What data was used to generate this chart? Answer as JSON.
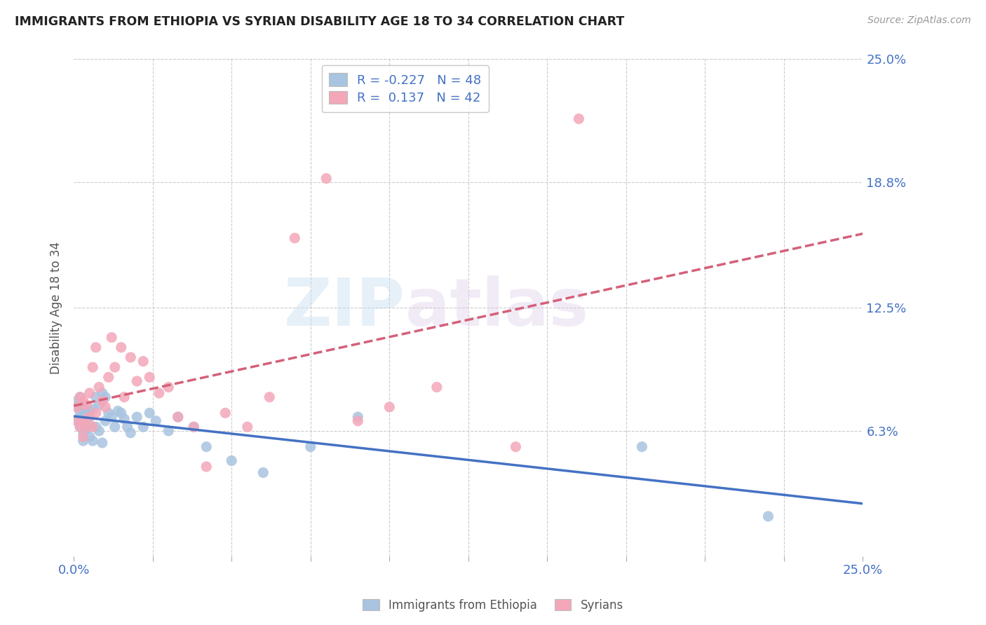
{
  "title": "IMMIGRANTS FROM ETHIOPIA VS SYRIAN DISABILITY AGE 18 TO 34 CORRELATION CHART",
  "source": "Source: ZipAtlas.com",
  "ylabel": "Disability Age 18 to 34",
  "xlim": [
    0.0,
    0.25
  ],
  "ylim": [
    0.0,
    0.25
  ],
  "ytick_labels": [
    "6.3%",
    "12.5%",
    "18.8%",
    "25.0%"
  ],
  "ytick_positions": [
    0.063,
    0.125,
    0.188,
    0.25
  ],
  "xtick_positions": [
    0.0,
    0.025,
    0.05,
    0.075,
    0.1,
    0.125,
    0.15,
    0.175,
    0.2,
    0.225,
    0.25
  ],
  "ethiopia_color": "#a8c4e0",
  "syria_color": "#f4a7b9",
  "ethiopia_line_color": "#4472c4",
  "syria_line_color": "#d4607a",
  "r_ethiopia": -0.227,
  "n_ethiopia": 48,
  "r_syria": 0.137,
  "n_syria": 42,
  "legend_label_ethiopia": "Immigrants from Ethiopia",
  "legend_label_syria": "Syrians",
  "axis_label_color": "#4472c4",
  "watermark_zip": "ZIP",
  "watermark_atlas": "atlas",
  "ethiopia_x": [
    0.001,
    0.001,
    0.001,
    0.002,
    0.002,
    0.002,
    0.002,
    0.003,
    0.003,
    0.003,
    0.003,
    0.004,
    0.004,
    0.005,
    0.005,
    0.005,
    0.006,
    0.006,
    0.007,
    0.007,
    0.008,
    0.008,
    0.009,
    0.009,
    0.01,
    0.01,
    0.011,
    0.012,
    0.013,
    0.014,
    0.015,
    0.016,
    0.017,
    0.018,
    0.02,
    0.022,
    0.024,
    0.026,
    0.03,
    0.033,
    0.038,
    0.042,
    0.05,
    0.06,
    0.075,
    0.09,
    0.18,
    0.22
  ],
  "ethiopia_y": [
    0.075,
    0.078,
    0.068,
    0.08,
    0.072,
    0.065,
    0.07,
    0.075,
    0.068,
    0.062,
    0.058,
    0.072,
    0.064,
    0.073,
    0.066,
    0.06,
    0.074,
    0.058,
    0.08,
    0.065,
    0.076,
    0.063,
    0.082,
    0.057,
    0.08,
    0.068,
    0.072,
    0.07,
    0.065,
    0.073,
    0.072,
    0.069,
    0.065,
    0.062,
    0.07,
    0.065,
    0.072,
    0.068,
    0.063,
    0.07,
    0.065,
    0.055,
    0.048,
    0.042,
    0.055,
    0.07,
    0.055,
    0.02
  ],
  "syria_x": [
    0.001,
    0.001,
    0.002,
    0.002,
    0.003,
    0.003,
    0.003,
    0.004,
    0.004,
    0.005,
    0.005,
    0.006,
    0.006,
    0.007,
    0.007,
    0.008,
    0.009,
    0.01,
    0.011,
    0.012,
    0.013,
    0.015,
    0.016,
    0.018,
    0.02,
    0.022,
    0.024,
    0.027,
    0.03,
    0.033,
    0.038,
    0.042,
    0.048,
    0.055,
    0.062,
    0.07,
    0.08,
    0.09,
    0.1,
    0.115,
    0.14,
    0.16
  ],
  "syria_y": [
    0.075,
    0.068,
    0.08,
    0.065,
    0.078,
    0.068,
    0.06,
    0.076,
    0.065,
    0.082,
    0.07,
    0.095,
    0.065,
    0.105,
    0.072,
    0.085,
    0.078,
    0.075,
    0.09,
    0.11,
    0.095,
    0.105,
    0.08,
    0.1,
    0.088,
    0.098,
    0.09,
    0.082,
    0.085,
    0.07,
    0.065,
    0.045,
    0.072,
    0.065,
    0.08,
    0.16,
    0.19,
    0.068,
    0.075,
    0.085,
    0.055,
    0.22
  ]
}
